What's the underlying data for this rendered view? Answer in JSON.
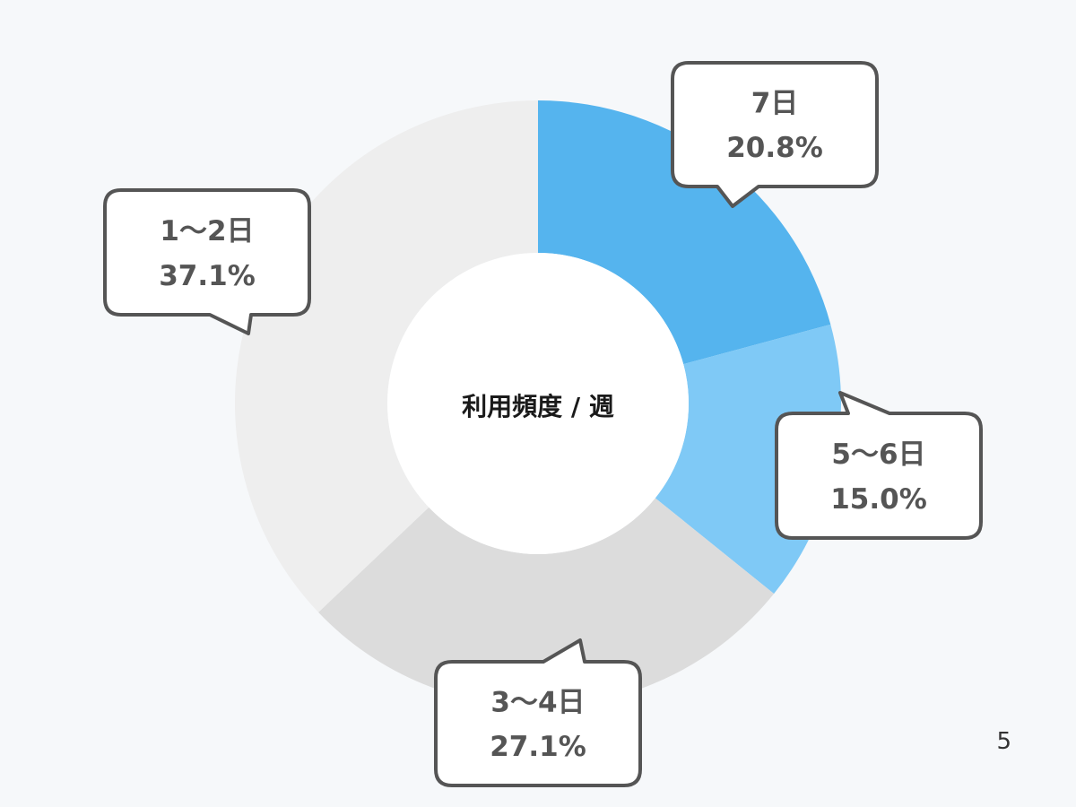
{
  "chart_data": {
    "type": "pie",
    "style": "donut",
    "title": "",
    "center_label": "利用頻度 / 週",
    "categories": [
      "7日",
      "5〜6日",
      "3〜4日",
      "1〜2日"
    ],
    "values": [
      20.8,
      15.0,
      27.1,
      37.1
    ],
    "value_labels": [
      "20.8%",
      "15.0%",
      "27.1%",
      "37.1%"
    ],
    "unit": "%",
    "colors": [
      "#55b4ee",
      "#7fc9f6",
      "#dcdcdc",
      "#eeeeee"
    ],
    "start_angle": "12 o'clock",
    "direction": "clockwise",
    "legend": "callouts"
  },
  "page": {
    "number": "5"
  },
  "colors": {
    "background": "#f6f8fa",
    "bubble_fill": "#ffffff",
    "bubble_stroke": "#555555",
    "bubble_text": "#555555",
    "center_text": "#1a1a1a"
  }
}
